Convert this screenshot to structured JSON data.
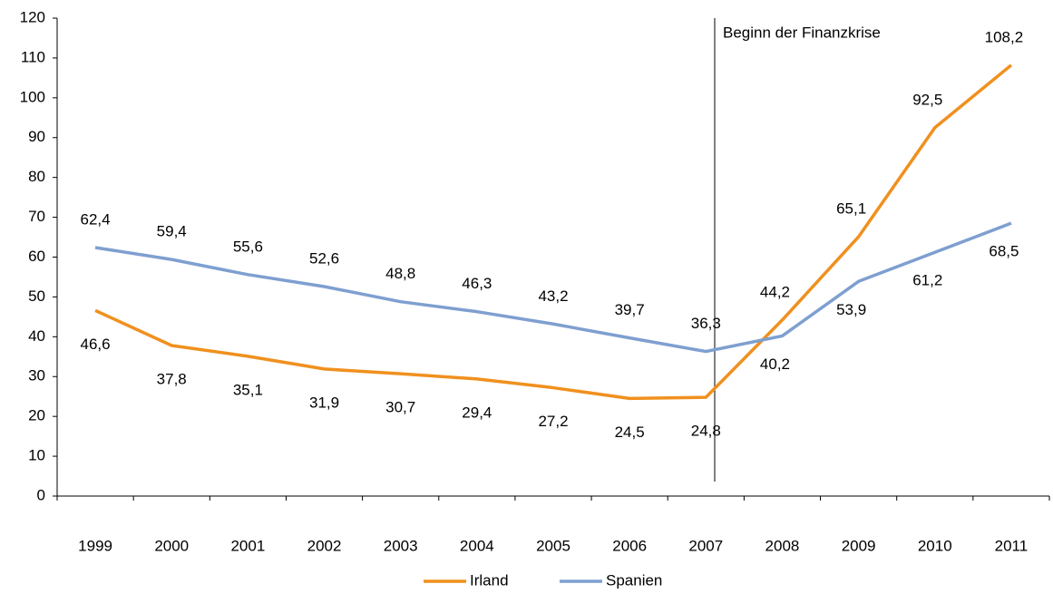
{
  "chart_data": {
    "type": "line",
    "categories": [
      "1999",
      "2000",
      "2001",
      "2002",
      "2003",
      "2004",
      "2005",
      "2006",
      "2007",
      "2008",
      "2009",
      "2010",
      "2011"
    ],
    "series": [
      {
        "name": "Irland",
        "color": "#f0901e",
        "values": [
          46.6,
          37.8,
          35.1,
          31.9,
          30.7,
          29.4,
          27.2,
          24.5,
          24.8,
          44.2,
          65.1,
          92.5,
          108.2
        ],
        "value_labels": [
          "46,6",
          "37,8",
          "35,1",
          "31,9",
          "30,7",
          "29,4",
          "27,2",
          "24,5",
          "24,8",
          "44,2",
          "65,1",
          "92,5",
          "108,2"
        ]
      },
      {
        "name": "Spanien",
        "color": "#7e9fd0",
        "values": [
          62.4,
          59.4,
          55.6,
          52.6,
          48.8,
          46.3,
          43.2,
          39.7,
          36.3,
          40.2,
          53.9,
          61.2,
          68.5
        ],
        "value_labels": [
          "62,4",
          "59,4",
          "55,6",
          "52,6",
          "48,8",
          "46,3",
          "43,2",
          "39,7",
          "36,3",
          "40,2",
          "53,9",
          "61,2",
          "68,5"
        ]
      }
    ],
    "annotation": "Beginn der Finanzkrise",
    "ylim": [
      0,
      120
    ],
    "yticks": [
      0,
      10,
      20,
      30,
      40,
      50,
      60,
      70,
      80,
      90,
      100,
      110,
      120
    ],
    "legend": "bottom"
  }
}
